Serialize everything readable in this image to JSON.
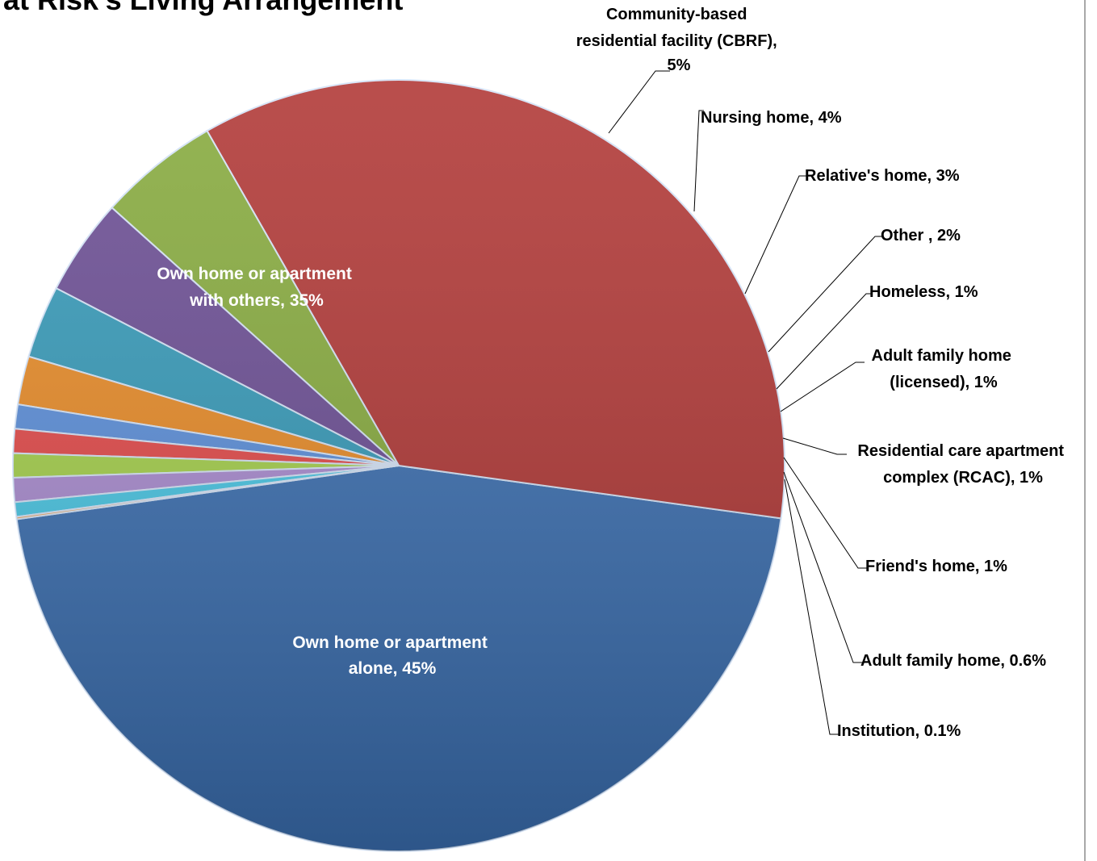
{
  "chart_data": {
    "type": "pie",
    "title": "t at Risk's Living Arrangement",
    "slices": [
      {
        "label": "Own home or apartment alone",
        "value": 45,
        "display": "45%",
        "color": "#3A6EB0"
      },
      {
        "label": "Own home or apartment with others",
        "value": 35,
        "display": "35%",
        "color": "#B03634"
      },
      {
        "label": "Community-based residential facility (CBRF)",
        "value": 5,
        "display": "5%",
        "color": "#86AA3C"
      },
      {
        "label": "Nursing home",
        "value": 4,
        "display": "4%",
        "color": "#6A4C93"
      },
      {
        "label": "Relative's home",
        "value": 3,
        "display": "3%",
        "color": "#3499B8"
      },
      {
        "label": "Other ",
        "value": 2,
        "display": "2%",
        "color": "#E88A25"
      },
      {
        "label": "Homeless",
        "value": 1,
        "display": "1%",
        "color": "#5A8EDA"
      },
      {
        "label": "Adult family home (licensed)",
        "value": 1,
        "display": "1%",
        "color": "#E34848"
      },
      {
        "label": "Residential care apartment complex (RCAC)",
        "value": 1,
        "display": "1%",
        "color": "#A4D04A"
      },
      {
        "label": "Friend's home",
        "value": 1,
        "display": "1%",
        "color": "#A98BD0"
      },
      {
        "label": "Adult family home",
        "value": 0.6,
        "display": "0.6%",
        "color": "#48C6E4"
      },
      {
        "label": "Institution",
        "value": 0.1,
        "display": "0.1%",
        "color": "#F4A65A"
      }
    ],
    "labels": {
      "own_alone": [
        "Own home or apartment",
        "alone, 45%"
      ],
      "own_others": [
        "Own home or apartment",
        "with others, 35%"
      ],
      "cbrf": [
        "Community-based",
        "residential facility (CBRF),",
        "5%"
      ],
      "nursing": [
        "Nursing home, 4%"
      ],
      "relative": [
        "Relative's home, 3%"
      ],
      "other": [
        "Other , 2%"
      ],
      "homeless": [
        "Homeless, 1%"
      ],
      "afh_licensed": [
        "Adult family home",
        "(licensed), 1%"
      ],
      "rcac": [
        "Residential care apartment",
        "complex (RCAC), 1%"
      ],
      "friend": [
        "Friend's home, 1%"
      ],
      "afh": [
        "Adult family home, 0.6%"
      ],
      "institution": [
        "Institution, 0.1%"
      ]
    }
  }
}
